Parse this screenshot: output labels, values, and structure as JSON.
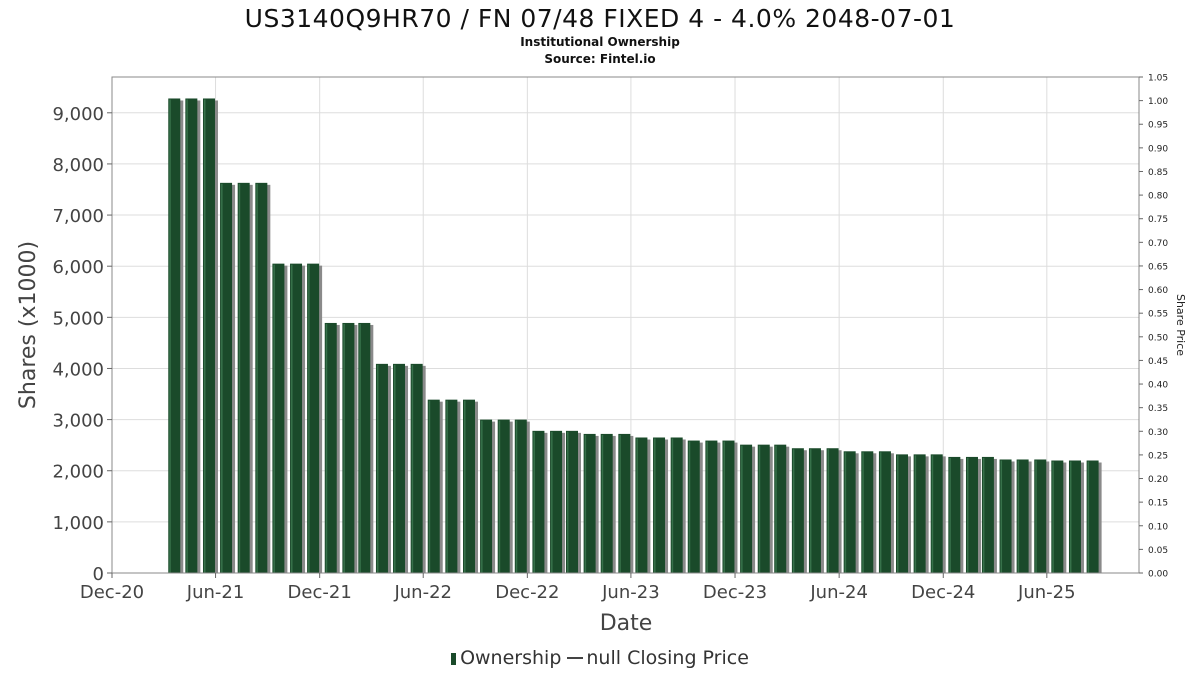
{
  "chart_data": {
    "type": "bar",
    "title": "US3140Q9HR70 / FN 07/48 FIXED 4 - 4.0% 2048-07-01",
    "subtitle": "Institutional Ownership",
    "source": "Source: Fintel.io",
    "xlabel": "Date",
    "ylabel": "Shares (x1000)",
    "y2label": "Share Price",
    "ylim": [
      0,
      9700
    ],
    "y2lim": [
      0,
      1.05
    ],
    "x_range": [
      "2020-12-01",
      "2025-11-10"
    ],
    "grid": true,
    "legend_position": "bottom",
    "colors": {
      "bar": "#1a4a2a",
      "bar_shadow": "#8a8a8a",
      "grid": "#dddddd"
    },
    "x_ticks": [
      {
        "date": "2020-12-01",
        "label": "Dec-20"
      },
      {
        "date": "2021-06-01",
        "label": "Jun-21"
      },
      {
        "date": "2021-12-01",
        "label": "Dec-21"
      },
      {
        "date": "2022-06-01",
        "label": "Jun-22"
      },
      {
        "date": "2022-12-01",
        "label": "Dec-22"
      },
      {
        "date": "2023-06-01",
        "label": "Jun-23"
      },
      {
        "date": "2023-12-01",
        "label": "Dec-23"
      },
      {
        "date": "2024-06-01",
        "label": "Jun-24"
      },
      {
        "date": "2024-12-01",
        "label": "Dec-24"
      },
      {
        "date": "2025-06-01",
        "label": "Jun-25"
      }
    ],
    "y_ticks": [
      {
        "value": 0,
        "label": "0"
      },
      {
        "value": 1000,
        "label": "1,000"
      },
      {
        "value": 2000,
        "label": "2,000"
      },
      {
        "value": 3000,
        "label": "3,000"
      },
      {
        "value": 4000,
        "label": "4,000"
      },
      {
        "value": 5000,
        "label": "5,000"
      },
      {
        "value": 6000,
        "label": "6,000"
      },
      {
        "value": 7000,
        "label": "7,000"
      },
      {
        "value": 8000,
        "label": "8,000"
      },
      {
        "value": 9000,
        "label": "9,000"
      }
    ],
    "y2_ticks": [
      "0.00",
      "0.05",
      "0.10",
      "0.15",
      "0.20",
      "0.25",
      "0.30",
      "0.35",
      "0.40",
      "0.45",
      "0.50",
      "0.55",
      "0.60",
      "0.65",
      "0.70",
      "0.75",
      "0.80",
      "0.85",
      "0.90",
      "0.95",
      "1.00",
      "1.05"
    ],
    "series": [
      {
        "name": "Ownership",
        "points": [
          {
            "x": "2021-03-31",
            "y": 9280
          },
          {
            "x": "2021-04-30",
            "y": 9280
          },
          {
            "x": "2021-05-31",
            "y": 9280
          },
          {
            "x": "2021-06-30",
            "y": 7630
          },
          {
            "x": "2021-07-31",
            "y": 7630
          },
          {
            "x": "2021-08-31",
            "y": 7630
          },
          {
            "x": "2021-09-30",
            "y": 6050
          },
          {
            "x": "2021-10-31",
            "y": 6050
          },
          {
            "x": "2021-11-30",
            "y": 6050
          },
          {
            "x": "2021-12-31",
            "y": 4890
          },
          {
            "x": "2022-01-31",
            "y": 4890
          },
          {
            "x": "2022-02-28",
            "y": 4890
          },
          {
            "x": "2022-03-31",
            "y": 4090
          },
          {
            "x": "2022-04-30",
            "y": 4090
          },
          {
            "x": "2022-05-31",
            "y": 4090
          },
          {
            "x": "2022-06-30",
            "y": 3390
          },
          {
            "x": "2022-07-31",
            "y": 3390
          },
          {
            "x": "2022-08-31",
            "y": 3390
          },
          {
            "x": "2022-09-30",
            "y": 3000
          },
          {
            "x": "2022-10-31",
            "y": 3000
          },
          {
            "x": "2022-11-30",
            "y": 3000
          },
          {
            "x": "2022-12-31",
            "y": 2780
          },
          {
            "x": "2023-01-31",
            "y": 2780
          },
          {
            "x": "2023-02-28",
            "y": 2780
          },
          {
            "x": "2023-03-31",
            "y": 2720
          },
          {
            "x": "2023-04-30",
            "y": 2720
          },
          {
            "x": "2023-05-31",
            "y": 2720
          },
          {
            "x": "2023-06-30",
            "y": 2650
          },
          {
            "x": "2023-07-31",
            "y": 2650
          },
          {
            "x": "2023-08-31",
            "y": 2650
          },
          {
            "x": "2023-09-30",
            "y": 2590
          },
          {
            "x": "2023-10-31",
            "y": 2590
          },
          {
            "x": "2023-11-30",
            "y": 2590
          },
          {
            "x": "2023-12-31",
            "y": 2510
          },
          {
            "x": "2024-01-31",
            "y": 2510
          },
          {
            "x": "2024-02-29",
            "y": 2510
          },
          {
            "x": "2024-03-31",
            "y": 2440
          },
          {
            "x": "2024-04-30",
            "y": 2440
          },
          {
            "x": "2024-05-31",
            "y": 2440
          },
          {
            "x": "2024-06-30",
            "y": 2380
          },
          {
            "x": "2024-07-31",
            "y": 2380
          },
          {
            "x": "2024-08-31",
            "y": 2380
          },
          {
            "x": "2024-09-30",
            "y": 2320
          },
          {
            "x": "2024-10-31",
            "y": 2320
          },
          {
            "x": "2024-11-30",
            "y": 2320
          },
          {
            "x": "2024-12-31",
            "y": 2270
          },
          {
            "x": "2025-01-31",
            "y": 2270
          },
          {
            "x": "2025-02-28",
            "y": 2270
          },
          {
            "x": "2025-03-31",
            "y": 2220
          },
          {
            "x": "2025-04-30",
            "y": 2220
          },
          {
            "x": "2025-05-31",
            "y": 2220
          },
          {
            "x": "2025-06-30",
            "y": 2200
          },
          {
            "x": "2025-07-31",
            "y": 2200
          },
          {
            "x": "2025-08-31",
            "y": 2200
          }
        ]
      }
    ],
    "legend": {
      "ownership_label": "Ownership",
      "price_label": "null Closing Price"
    }
  }
}
